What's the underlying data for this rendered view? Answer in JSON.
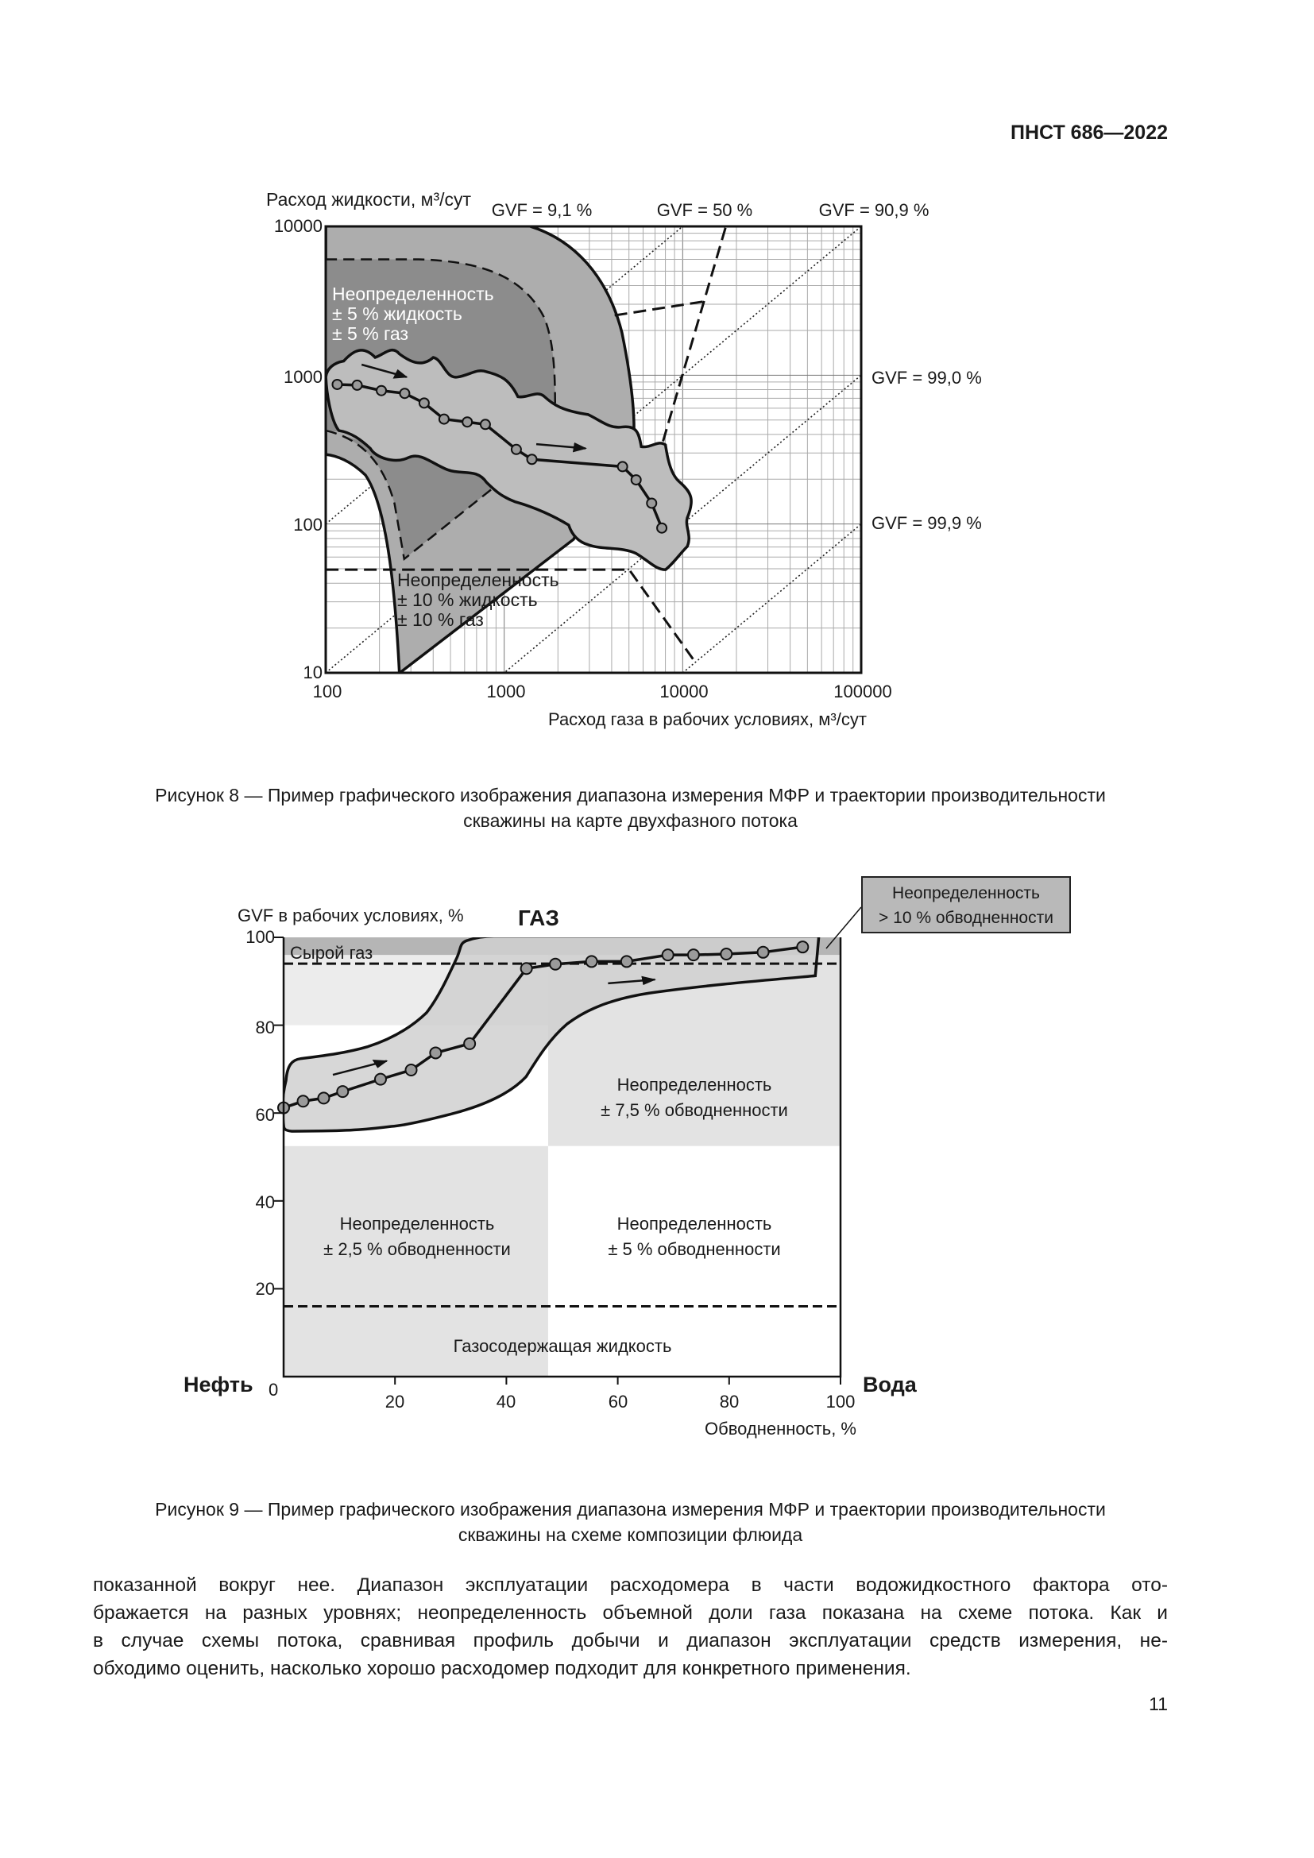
{
  "header": {
    "doc_id": "ПНСТ 686—2022"
  },
  "figure8": {
    "caption_lines": [
      "Рисунок 8 — Пример графического изображения диапазона измерения МФР и траектории производительности",
      "скважины на карте двухфазного потока"
    ]
  },
  "figure9": {
    "caption_lines": [
      "Рисунок 9 — Пример графического изображения диапазона измерения МФР и траектории производительности",
      "скважины на схеме композиции флюида"
    ]
  },
  "body_text": {
    "lines": [
      "показанной вокруг нее. Диапазон эксплуатации расходомера в части водожидкостного фактора ото-",
      "бражается на разных уровнях; неопределенность объемной доли газа показана на схеме потока. Как и",
      "в случае схемы потока, сравнивая профиль добычи и диапазон эксплуатации средств измерения, не-",
      "обходимо оценить, насколько хорошо расходомер подходит для конкретного применения."
    ]
  },
  "page_number": "11",
  "colors": {
    "region_dark": "#8c8c8c",
    "region_mid": "#adadad",
    "envelope": "#bdbdbd",
    "light_fill": "#e3e3e3",
    "raw_gas": "#b5b5b5"
  },
  "chart_data": [
    {
      "type": "line",
      "title": "",
      "xlabel": "Расход газа в рабочих условиях, м³/сут",
      "ylabel": "Расход жидкости, м³/сут",
      "xscale": "log",
      "yscale": "log",
      "xlim": [
        100,
        100000
      ],
      "ylim": [
        10,
        10000
      ],
      "xticks": [
        "100",
        "1000",
        "10000",
        "100000"
      ],
      "yticks": [
        "10",
        "100",
        "1000",
        "10000"
      ],
      "grid": true,
      "gvf_labels": {
        "top": [
          "GVF = 9,1 %",
          "GVF = 50 %",
          "GVF = 90,9 %"
        ],
        "right": [
          "GVF = 99,0 %",
          "GVF = 99,9 %"
        ]
      },
      "gvf_lines_liquid_to_gas_ratio": [
        1,
        0.1,
        0.01,
        0.001
      ],
      "regions": [
        {
          "lines": [
            "Неопределенность",
            "± 5 % жидкость",
            "± 5 % газ"
          ]
        },
        {
          "lines": [
            "Неопределенность",
            "± 10 % жидкость",
            "± 10 % газ"
          ]
        }
      ],
      "series": [
        {
          "name": "Траектория производительности скважины",
          "x": [
            116,
            150,
            205,
            277,
            356,
            460,
            621,
            784,
            1169,
            1429,
            4603,
            5483,
            6700,
            7640
          ],
          "y": [
            867,
            857,
            788,
            755,
            650,
            507,
            485,
            467,
            317,
            272,
            243,
            198,
            138,
            94
          ]
        }
      ]
    },
    {
      "type": "line",
      "title": "",
      "xlabel": "Обводненность, %",
      "ylabel": "GVF в рабочих условиях, %",
      "xlim": [
        0,
        100
      ],
      "ylim": [
        0,
        100
      ],
      "xticks": [
        "0",
        "20",
        "40",
        "60",
        "80",
        "100"
      ],
      "yticks": [
        "20",
        "40",
        "60",
        "80",
        "100"
      ],
      "end_labels": {
        "left": "Нефть",
        "right": "Вода",
        "top": "ГАЗ"
      },
      "threshold_lines_gvf": [
        94,
        16
      ],
      "regions": [
        {
          "lines": [
            "Сырой газ"
          ]
        },
        {
          "lines": [
            "Неопределенность",
            "± 7,5 % обводненности"
          ]
        },
        {
          "lines": [
            "Неопределенность",
            "± 2,5 % обводненности"
          ]
        },
        {
          "lines": [
            "Неопределенность",
            "± 5 % обводненности"
          ]
        },
        {
          "lines": [
            "Газосодержащая жидкость"
          ]
        }
      ],
      "callout": {
        "lines": [
          "Неопределенность",
          "> 10 % обводненности"
        ]
      },
      "series": [
        {
          "name": "Траектория производительности скважины",
          "x": [
            0,
            3.5,
            7.2,
            10.6,
            17.4,
            22.9,
            27.3,
            33.4,
            43.6,
            48.8,
            55.3,
            61.6,
            69.0,
            73.6,
            79.5,
            86.1,
            93.2
          ],
          "y": [
            61.2,
            62.7,
            63.4,
            64.9,
            67.7,
            69.8,
            73.7,
            75.8,
            92.9,
            93.9,
            94.5,
            94.5,
            96.0,
            96.0,
            96.2,
            96.6,
            97.8
          ]
        }
      ]
    }
  ]
}
